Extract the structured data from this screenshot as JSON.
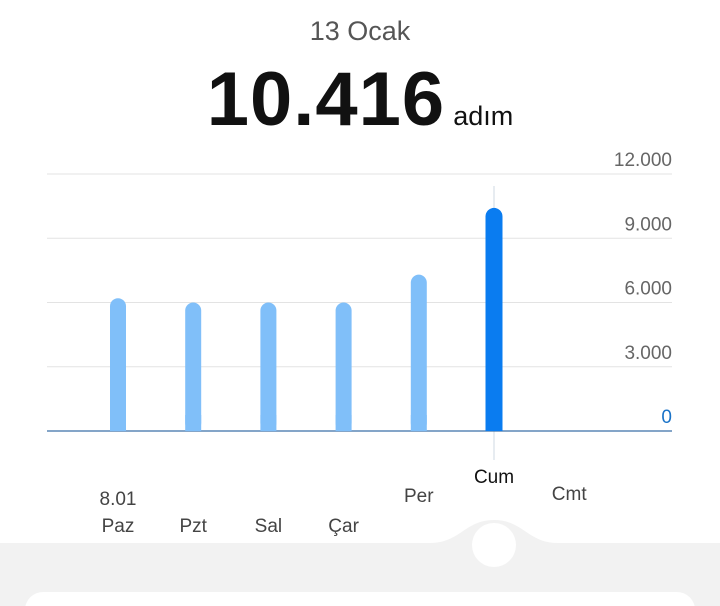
{
  "header": {
    "date": "13 Ocak",
    "steps": "10.416",
    "unit": "adım"
  },
  "colors": {
    "bar": "#80bff9",
    "selected": "#0a7cf0",
    "axis": "#3a6fa8",
    "grid": "#e3e3e3",
    "zero_label": "#1a73c8"
  },
  "chart_data": {
    "type": "bar",
    "title": "",
    "xlabel": "",
    "ylabel": "",
    "categories": [
      "Paz",
      "Pzt",
      "Sal",
      "Çar",
      "Per",
      "Cum",
      "Cmt"
    ],
    "date_label": "8.01",
    "values": [
      6200,
      6000,
      6000,
      6000,
      7300,
      10416,
      0
    ],
    "selected_index": 5,
    "ylim": [
      0,
      12000
    ],
    "yticks": [
      0,
      3000,
      6000,
      9000,
      12000
    ],
    "ytick_labels": [
      "0",
      "3.000",
      "6.000",
      "9.000",
      "12.000"
    ],
    "grid": true
  }
}
